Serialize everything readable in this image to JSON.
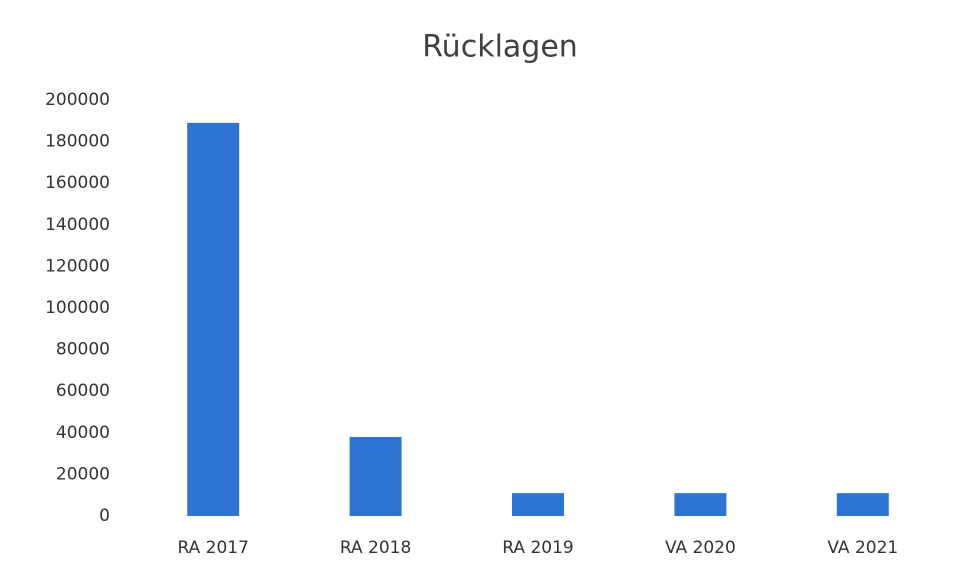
{
  "chart_data": {
    "type": "bar",
    "title": "Rücklagen",
    "categories": [
      "RA 2017",
      "RA 2018",
      "RA 2019",
      "VA 2020",
      "VA 2021"
    ],
    "values": [
      189000,
      38000,
      11000,
      11000,
      11000
    ],
    "color": "#2e74d3",
    "ylim": [
      0,
      200000
    ],
    "yticks": [
      0,
      20000,
      40000,
      60000,
      80000,
      100000,
      120000,
      140000,
      160000,
      180000,
      200000
    ],
    "grid": false
  }
}
